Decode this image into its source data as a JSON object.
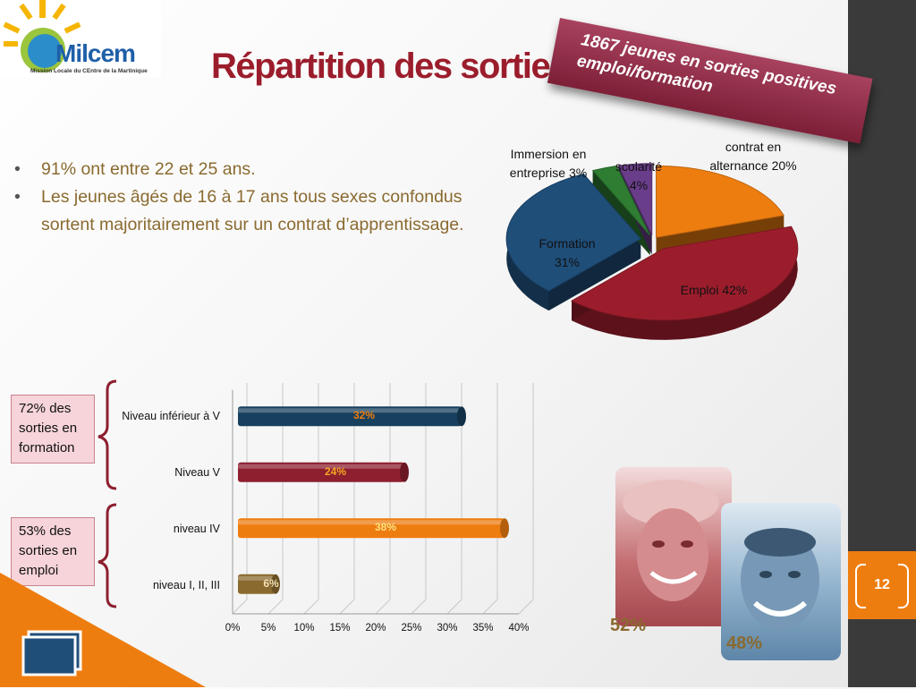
{
  "logo": {
    "name": "Milcem",
    "subtitle": "Mission Locale du CEntre de la Martinique"
  },
  "title": "Répartition des sorties",
  "banner": "1867 jeunes en sorties positives emploi/formation",
  "bullets": [
    "91% ont entre 22 et 25 ans.",
    "Les jeunes âgés de 16 à 17 ans tous sexes confondus  sortent majoritairement sur un contrat d’apprentissage."
  ],
  "side_boxes": {
    "formation": "72% des sorties en formation",
    "emploi": "53% des sorties en emploi"
  },
  "gender": {
    "female_pct": "52%",
    "male_pct": "48%"
  },
  "page_number": "12",
  "colors": {
    "title": "#9b1d2c",
    "orange": "#ee7d10",
    "navy": "#17405e",
    "crimson": "#8d1f2f",
    "gold": "#8a6a2f"
  },
  "chart_data": [
    {
      "type": "pie",
      "labels": [
        "contrat en alternance",
        "Emploi",
        "Formation",
        "Immersion en entreprise",
        "scolarité"
      ],
      "values": [
        20,
        42,
        31,
        3,
        4
      ],
      "display": [
        "contrat en alternance 20%",
        "Emploi 42%",
        "Formation 31%",
        "Immersion en entreprise 3%",
        "scolarité 4%"
      ],
      "colors": [
        "#ee7d10",
        "#9b1d2c",
        "#1f4e79",
        "#2e7d32",
        "#6a3d8a"
      ]
    },
    {
      "type": "bar",
      "orientation": "horizontal",
      "categories": [
        "Niveau inférieur à V",
        "Niveau V",
        "niveau IV",
        "niveau I, II, III"
      ],
      "values": [
        32,
        24,
        38,
        6
      ],
      "value_labels": [
        "32%",
        "24%",
        "38%",
        "6%"
      ],
      "xlim": [
        0,
        40
      ],
      "ticks": [
        "0%",
        "5%",
        "10%",
        "15%",
        "20%",
        "25%",
        "30%",
        "35%",
        "40%"
      ],
      "colors": [
        "#17405e",
        "#8d1f2f",
        "#ee7d10",
        "#8a6a2f"
      ],
      "label_colors": [
        "#ee7d10",
        "#f5a623",
        "#ffe082",
        "#f3e0b5"
      ]
    }
  ]
}
